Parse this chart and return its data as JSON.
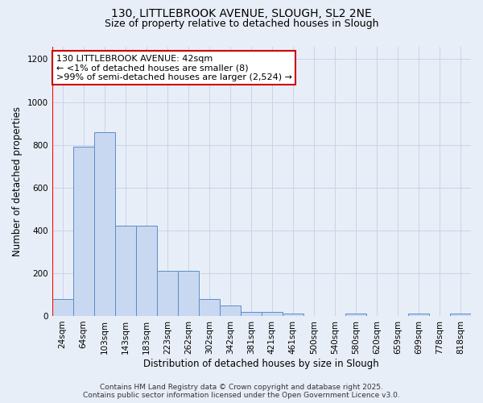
{
  "title1": "130, LITTLEBROOK AVENUE, SLOUGH, SL2 2NE",
  "title2": "Size of property relative to detached houses in Slough",
  "xlabel": "Distribution of detached houses by size in Slough",
  "ylabel": "Number of detached properties",
  "categories": [
    "24sqm",
    "64sqm",
    "103sqm",
    "143sqm",
    "183sqm",
    "223sqm",
    "262sqm",
    "302sqm",
    "342sqm",
    "381sqm",
    "421sqm",
    "461sqm",
    "500sqm",
    "540sqm",
    "580sqm",
    "620sqm",
    "659sqm",
    "699sqm",
    "778sqm",
    "818sqm"
  ],
  "values": [
    80,
    790,
    860,
    420,
    420,
    210,
    210,
    80,
    50,
    20,
    20,
    10,
    0,
    0,
    10,
    0,
    0,
    10,
    0,
    10
  ],
  "bar_color": "#c8d8f0",
  "bar_edge_color": "#5b8dc8",
  "red_line_x": -0.5,
  "ylim": [
    0,
    1260
  ],
  "yticks": [
    0,
    200,
    400,
    600,
    800,
    1000,
    1200
  ],
  "annotation_line1": "130 LITTLEBROOK AVENUE: 42sqm",
  "annotation_line2": "← <1% of detached houses are smaller (8)",
  "annotation_line3": ">99% of semi-detached houses are larger (2,524) →",
  "annotation_box_color": "#ffffff",
  "annotation_box_edge": "#cc0000",
  "grid_color": "#c8d4e8",
  "background_color": "#e8eef8",
  "footnote1": "Contains HM Land Registry data © Crown copyright and database right 2025.",
  "footnote2": "Contains public sector information licensed under the Open Government Licence v3.0.",
  "title1_fontsize": 10,
  "title2_fontsize": 9,
  "xlabel_fontsize": 8.5,
  "ylabel_fontsize": 8.5,
  "tick_fontsize": 7.5,
  "annot_fontsize": 8,
  "footnote_fontsize": 6.5
}
